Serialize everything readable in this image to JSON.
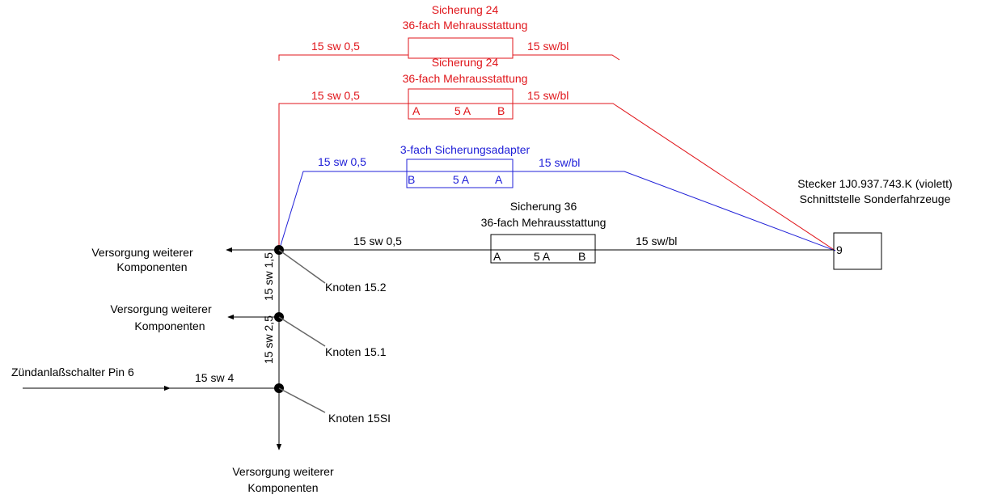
{
  "colors": {
    "red": "#e0161b",
    "blue": "#2020d8",
    "black": "#000000"
  },
  "fuse24_ghost": {
    "title": "Sicherung 24",
    "subtitle": "36-fach  Mehrausstattung",
    "left_wire": "15 sw 0,5",
    "right_wire": "15 sw/bl"
  },
  "fuse24": {
    "title": "Sicherung 24",
    "subtitle": "36-fach  Mehrausstattung",
    "left_wire": "15 sw 0,5",
    "right_wire": "15 sw/bl",
    "pin_left": "A",
    "rating": "5 A",
    "pin_right": "B"
  },
  "adapter": {
    "title": "3-fach Sicherungsadapter",
    "left_wire": "15 sw 0,5",
    "right_wire": "15 sw/bl",
    "pin_left": "B",
    "rating": "5 A",
    "pin_right": "A"
  },
  "fuse36": {
    "title": "Sicherung 36",
    "subtitle": "36-fach Mehrausstattung",
    "left_wire": "15 sw 0,5",
    "right_wire": "15 sw/bl",
    "pin_left": "A",
    "rating": "5 A",
    "pin_right": "B"
  },
  "connector": {
    "title": "Stecker 1J0.937.743.K (violett)",
    "subtitle": "Schnittstelle Sonderfahrzeuge",
    "pin": "9"
  },
  "supply1": {
    "line1": "Versorgung weiterer",
    "line2": "Komponenten"
  },
  "supply2": {
    "line1": "Versorgung weiterer",
    "line2": "Komponenten"
  },
  "supply3": {
    "line1": "Versorgung weiterer",
    "line2": "Komponenten"
  },
  "nodes": {
    "n152": "Knoten 15.2",
    "n151": "Knoten 15.1",
    "n15si": "Knoten 15SI"
  },
  "vertical_wires": {
    "upper": "15  sw 1,5",
    "lower": "15  sw 2,5"
  },
  "ignition": {
    "label": "Zündanlaßschalter Pin 6",
    "wire": "15  sw 4"
  }
}
